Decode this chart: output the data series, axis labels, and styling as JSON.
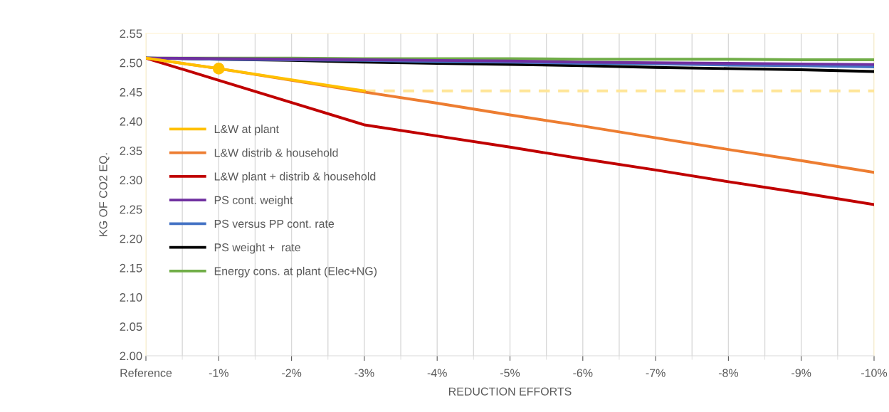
{
  "chart_data": {
    "type": "line",
    "xlabel": "REDUCTION EFFORTS",
    "ylabel": "KG OF CO2 EQ.",
    "categories": [
      "Reference",
      "-1%",
      "-2%",
      "-3%",
      "-4%",
      "-5%",
      "-6%",
      "-7%",
      "-8%",
      "-9%",
      "-10%"
    ],
    "series": [
      {
        "name": "L&W at plant",
        "color": "#ffc000",
        "values": [
          2.508,
          2.49,
          2.471,
          2.452,
          null,
          null,
          null,
          null,
          null,
          null,
          null
        ]
      },
      {
        "name": "L&W distrib & household",
        "color": "#ed7d31",
        "values": [
          2.508,
          2.49,
          2.47,
          2.45,
          2.431,
          2.411,
          2.392,
          2.372,
          2.352,
          2.333,
          2.313
        ]
      },
      {
        "name": "L&W plant + distrib & household",
        "color": "#c00000",
        "values": [
          2.508,
          2.47,
          2.432,
          2.394,
          2.375,
          2.356,
          2.336,
          2.317,
          2.297,
          2.278,
          2.258
        ]
      },
      {
        "name": "PS cont. weight",
        "color": "#7030a0",
        "values": [
          2.508,
          2.507,
          2.506,
          2.505,
          2.504,
          2.503,
          2.501,
          2.5,
          2.499,
          2.498,
          2.497
        ]
      },
      {
        "name": "PS versus PP cont. rate",
        "color": "#4472c4",
        "values": [
          2.508,
          2.506,
          2.505,
          2.504,
          2.502,
          2.501,
          2.499,
          2.498,
          2.496,
          2.495,
          2.493
        ]
      },
      {
        "name": "PS weight +  rate",
        "color": "#000000",
        "values": [
          2.508,
          2.506,
          2.504,
          2.501,
          2.499,
          2.497,
          2.495,
          2.492,
          2.49,
          2.488,
          2.485
        ]
      },
      {
        "name": "Energy cons. at plant (Elec+NG)",
        "color": "#70ad47",
        "values": [
          2.508,
          2.508,
          2.508,
          2.507,
          2.507,
          2.507,
          2.506,
          2.506,
          2.506,
          2.505,
          2.505
        ]
      },
      {
        "type": "line",
        "line_style": "dashed",
        "color": "#ffe699",
        "values": [
          null,
          null,
          null,
          2.452,
          2.452,
          2.452,
          2.452,
          2.452,
          2.452,
          2.452,
          2.452
        ]
      },
      {
        "type": "scatter",
        "marker": "circle",
        "color": "#ffc000",
        "values": [
          null,
          2.49,
          null,
          null,
          null,
          null,
          null,
          null,
          null,
          null,
          null
        ]
      }
    ],
    "ylim": [
      2.0,
      2.55
    ],
    "yticks": [
      {
        "value": 2.0,
        "label": "2.00"
      },
      {
        "value": 2.05,
        "label": "2.05"
      },
      {
        "value": 2.1,
        "label": "2.10"
      },
      {
        "value": 2.15,
        "label": "2.15"
      },
      {
        "value": 2.2,
        "label": "2.20"
      },
      {
        "value": 2.25,
        "label": "2.25"
      },
      {
        "value": 2.3,
        "label": "2.30"
      },
      {
        "value": 2.35,
        "label": "2.35"
      },
      {
        "value": 2.4,
        "label": "2.40"
      },
      {
        "value": 2.45,
        "label": "2.45"
      },
      {
        "value": 2.5,
        "label": "2.50"
      },
      {
        "value": 2.55,
        "label": "2.55"
      }
    ],
    "grid": "x",
    "legend": "left",
    "marker": "none",
    "line_style": "solid"
  }
}
